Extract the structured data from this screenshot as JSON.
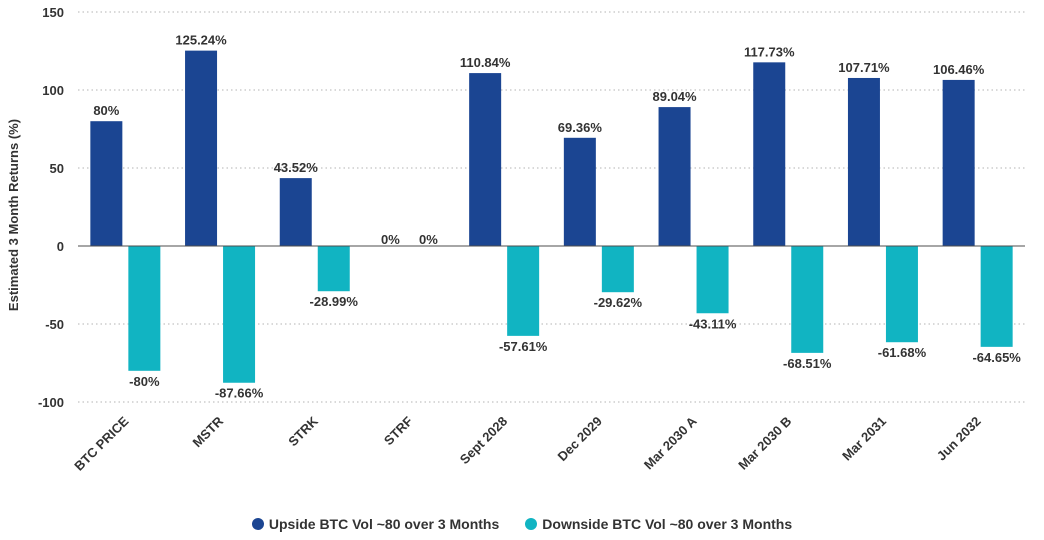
{
  "chart_data": {
    "type": "bar",
    "title": "",
    "xlabel": "",
    "ylabel": "Estimated 3 Month Returns (%)",
    "ylim": [
      -100,
      150
    ],
    "yticks": [
      150,
      100,
      50,
      0,
      -50,
      -100
    ],
    "grid": true,
    "legend_position": "bottom",
    "categories": [
      "BTC PRICE",
      "MSTR",
      "STRK",
      "STRF",
      "Sept 2028",
      "Dec 2029",
      "Mar 2030 A",
      "Mar 2030 B",
      "Mar 2031",
      "Jun 2032"
    ],
    "series": [
      {
        "name": "Upside BTC Vol ~80 over 3 Months",
        "color": "#1b4592",
        "values": [
          80,
          125.24,
          43.52,
          0,
          110.84,
          69.36,
          89.04,
          117.73,
          107.71,
          106.46
        ],
        "labels": [
          "80%",
          "125.24%",
          "43.52%",
          "0%",
          "110.84%",
          "69.36%",
          "89.04%",
          "117.73%",
          "107.71%",
          "106.46%"
        ]
      },
      {
        "name": "Downside BTC Vol ~80 over 3 Months",
        "color": "#11b4c2",
        "values": [
          -80,
          -87.66,
          -28.99,
          0,
          -57.61,
          -29.62,
          -43.11,
          -68.51,
          -61.68,
          -64.65
        ],
        "labels": [
          "-80%",
          "-87.66%",
          "-28.99%",
          "0%",
          "-57.61%",
          "-29.62%",
          "-43.11%",
          "-68.51%",
          "-61.68%",
          "-64.65%"
        ]
      }
    ]
  }
}
